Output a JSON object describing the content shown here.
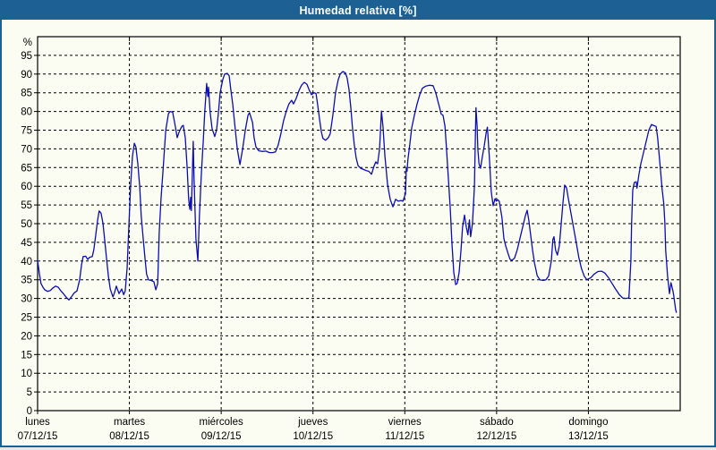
{
  "window": {
    "title": "Humedad relativa [%]"
  },
  "colors": {
    "titlebar": "#1d6094",
    "border": "#1d6094",
    "background": "#fbfdf2",
    "grid": "#000000",
    "frame": "#000000",
    "text": "#000000",
    "line": "#0c0cb8"
  },
  "chart_data": {
    "type": "line",
    "title": "Humedad relativa [%]",
    "y_axis_symbol": "%",
    "ylim": [
      0,
      100
    ],
    "y_ticks": [
      0,
      5,
      10,
      15,
      20,
      25,
      30,
      35,
      40,
      45,
      50,
      55,
      60,
      65,
      70,
      75,
      80,
      85,
      90,
      95
    ],
    "grid": "dashed",
    "x_hours_total": 168,
    "x_days": [
      {
        "name": "lunes",
        "date": "07/12/15"
      },
      {
        "name": "martes",
        "date": "08/12/15"
      },
      {
        "name": "miércoles",
        "date": "09/12/15"
      },
      {
        "name": "jueves",
        "date": "10/12/15"
      },
      {
        "name": "viernes",
        "date": "11/12/15"
      },
      {
        "name": "sábado",
        "date": "12/12/15"
      },
      {
        "name": "domingo",
        "date": "13/12/15"
      }
    ],
    "series": [
      {
        "name": "Humedad relativa",
        "color": "#0c0cb8",
        "points": [
          [
            0,
            40.2
          ],
          [
            0.5,
            36.5
          ],
          [
            0.9,
            34
          ],
          [
            1.4,
            33
          ],
          [
            1.9,
            32.3
          ],
          [
            2.6,
            31.9
          ],
          [
            3.3,
            32.1
          ],
          [
            4,
            32.8
          ],
          [
            4.7,
            33.3
          ],
          [
            5.4,
            33
          ],
          [
            6.1,
            32
          ],
          [
            6.8,
            31.2
          ],
          [
            7.5,
            30.3
          ],
          [
            8.2,
            29.6
          ],
          [
            8.9,
            30.5
          ],
          [
            9.6,
            31.5
          ],
          [
            10.3,
            32
          ],
          [
            11,
            35
          ],
          [
            11.5,
            39
          ],
          [
            11.9,
            41.2
          ],
          [
            12.6,
            41.3
          ],
          [
            13.1,
            40.4
          ],
          [
            13.6,
            41
          ],
          [
            14.3,
            41.2
          ],
          [
            14.7,
            43
          ],
          [
            15.2,
            47
          ],
          [
            15.7,
            51
          ],
          [
            16.1,
            53.4
          ],
          [
            16.6,
            52.8
          ],
          [
            17.1,
            50
          ],
          [
            17.5,
            46
          ],
          [
            18,
            41
          ],
          [
            18.5,
            36
          ],
          [
            19,
            32.5
          ],
          [
            19.7,
            30.4
          ],
          [
            20.1,
            31.5
          ],
          [
            20.6,
            33.3
          ],
          [
            21.3,
            31.3
          ],
          [
            22,
            32.5
          ],
          [
            22.5,
            31
          ],
          [
            22.9,
            32
          ],
          [
            23.4,
            38
          ],
          [
            23.9,
            50
          ],
          [
            24.3,
            60
          ],
          [
            24.8,
            68
          ],
          [
            25.3,
            71.5
          ],
          [
            25.7,
            70.5
          ],
          [
            26.2,
            66
          ],
          [
            26.7,
            60
          ],
          [
            27.1,
            52
          ],
          [
            27.6,
            46
          ],
          [
            28.1,
            40.5
          ],
          [
            28.5,
            36.5
          ],
          [
            29,
            35
          ],
          [
            29.7,
            34.8
          ],
          [
            30.4,
            34.5
          ],
          [
            30.9,
            32.3
          ],
          [
            31.4,
            34
          ],
          [
            31.8,
            47.6
          ],
          [
            32.3,
            57
          ],
          [
            32.8,
            64.4
          ],
          [
            33.5,
            75
          ],
          [
            34.2,
            79.4
          ],
          [
            34.6,
            80
          ],
          [
            35.3,
            79.8
          ],
          [
            36,
            76
          ],
          [
            36.5,
            73
          ],
          [
            37,
            74.5
          ],
          [
            37.7,
            76
          ],
          [
            38.1,
            76.3
          ],
          [
            38.6,
            73
          ],
          [
            39.1,
            65
          ],
          [
            39.5,
            56.5
          ],
          [
            39.8,
            53.8
          ],
          [
            40,
            57
          ],
          [
            40.2,
            53.5
          ],
          [
            40.7,
            72
          ],
          [
            40.9,
            62
          ],
          [
            41.4,
            46
          ],
          [
            41.9,
            40
          ],
          [
            42.3,
            52
          ],
          [
            42.8,
            63
          ],
          [
            43.3,
            72
          ],
          [
            43.7,
            80
          ],
          [
            44.2,
            87.5
          ],
          [
            44.5,
            84
          ],
          [
            44.7,
            86.5
          ],
          [
            45.1,
            80
          ],
          [
            45.6,
            75.5
          ],
          [
            46.3,
            73.3
          ],
          [
            46.8,
            75
          ],
          [
            47.3,
            80
          ],
          [
            47.7,
            85
          ],
          [
            48.4,
            88.5
          ],
          [
            48.9,
            90
          ],
          [
            49.6,
            90.2
          ],
          [
            50.1,
            89.5
          ],
          [
            50.5,
            86
          ],
          [
            51,
            82
          ],
          [
            51.5,
            77
          ],
          [
            52.2,
            70
          ],
          [
            52.9,
            65.8
          ],
          [
            53.6,
            70
          ],
          [
            54.3,
            75
          ],
          [
            55,
            79
          ],
          [
            55.4,
            79.7
          ],
          [
            56.2,
            77
          ],
          [
            56.6,
            73
          ],
          [
            57.1,
            70.5
          ],
          [
            57.8,
            69.5
          ],
          [
            58.7,
            69.3
          ],
          [
            59.7,
            69.4
          ],
          [
            60.6,
            69
          ],
          [
            61.5,
            69
          ],
          [
            62.2,
            69.2
          ],
          [
            62.9,
            71
          ],
          [
            63.6,
            74
          ],
          [
            64.3,
            77.5
          ],
          [
            65,
            80
          ],
          [
            65.7,
            82
          ],
          [
            66.4,
            83
          ],
          [
            66.9,
            82
          ],
          [
            67.6,
            83.5
          ],
          [
            68.3,
            85.5
          ],
          [
            69,
            87
          ],
          [
            69.7,
            87.8
          ],
          [
            70.4,
            87.3
          ],
          [
            71.1,
            85.5
          ],
          [
            71.6,
            84.5
          ],
          [
            72.3,
            85
          ],
          [
            72.8,
            84.8
          ],
          [
            73.2,
            82
          ],
          [
            73.7,
            78
          ],
          [
            74.2,
            74.5
          ],
          [
            74.6,
            72.8
          ],
          [
            75.3,
            72.3
          ],
          [
            76,
            73
          ],
          [
            76.5,
            74
          ],
          [
            77.2,
            79
          ],
          [
            77.9,
            85
          ],
          [
            78.6,
            88.5
          ],
          [
            79.1,
            90
          ],
          [
            79.8,
            90.7
          ],
          [
            80.5,
            90.3
          ],
          [
            80.9,
            89
          ],
          [
            81.4,
            86
          ],
          [
            81.9,
            81
          ],
          [
            82.3,
            76
          ],
          [
            82.8,
            71
          ],
          [
            83.3,
            67.5
          ],
          [
            83.8,
            65.5
          ],
          [
            84.5,
            64.8
          ],
          [
            85.2,
            64.5
          ],
          [
            85.9,
            64.2
          ],
          [
            86.6,
            64
          ],
          [
            87.3,
            63.2
          ],
          [
            88,
            65.5
          ],
          [
            88.4,
            66.5
          ],
          [
            88.9,
            66
          ],
          [
            89.4,
            70
          ],
          [
            89.9,
            80.1
          ],
          [
            90.3,
            76
          ],
          [
            90.8,
            68
          ],
          [
            91.5,
            60.3
          ],
          [
            92.2,
            56.5
          ],
          [
            92.9,
            54.5
          ],
          [
            93.6,
            56.5
          ],
          [
            94.3,
            56
          ],
          [
            95,
            56.2
          ],
          [
            95.5,
            56
          ],
          [
            96.2,
            58
          ],
          [
            96.4,
            65
          ],
          [
            96.6,
            64
          ],
          [
            96.8,
            67
          ],
          [
            97.3,
            71
          ],
          [
            97.8,
            75.6
          ],
          [
            98.5,
            79
          ],
          [
            99.2,
            82
          ],
          [
            99.9,
            84.5
          ],
          [
            100.6,
            86.2
          ],
          [
            101.5,
            86.8
          ],
          [
            102.5,
            87
          ],
          [
            103.4,
            86.9
          ],
          [
            104.1,
            85
          ],
          [
            104.6,
            83
          ],
          [
            105.1,
            81
          ],
          [
            105.5,
            79.3
          ],
          [
            106,
            79
          ],
          [
            106.5,
            76
          ],
          [
            106.9,
            70
          ],
          [
            107.4,
            62
          ],
          [
            107.9,
            54
          ],
          [
            108.3,
            45
          ],
          [
            108.8,
            37
          ],
          [
            109.3,
            33.7
          ],
          [
            109.7,
            34
          ],
          [
            110.2,
            37
          ],
          [
            110.7,
            43
          ],
          [
            111.1,
            49
          ],
          [
            111.6,
            52.3
          ],
          [
            112.1,
            49
          ],
          [
            112.5,
            47
          ],
          [
            112.9,
            51
          ],
          [
            113.2,
            46.5
          ],
          [
            113.7,
            50
          ],
          [
            114.2,
            60
          ],
          [
            114.4,
            70
          ],
          [
            114.6,
            81
          ],
          [
            114.9,
            76
          ],
          [
            115.1,
            70
          ],
          [
            115.4,
            66
          ],
          [
            115.8,
            64.8
          ],
          [
            116.3,
            68
          ],
          [
            116.8,
            71
          ],
          [
            117.3,
            74.5
          ],
          [
            117.6,
            75.8
          ],
          [
            118.1,
            68
          ],
          [
            118.6,
            58.5
          ],
          [
            119.1,
            54.8
          ],
          [
            119.6,
            56.7
          ],
          [
            119.9,
            56
          ],
          [
            120.3,
            56.4
          ],
          [
            120.7,
            56
          ],
          [
            121.4,
            51.7
          ],
          [
            121.9,
            46
          ],
          [
            122.4,
            44
          ],
          [
            123,
            42
          ],
          [
            123.5,
            40.5
          ],
          [
            124,
            40.2
          ],
          [
            124.7,
            40.8
          ],
          [
            125.4,
            43
          ],
          [
            126.1,
            46
          ],
          [
            126.8,
            49
          ],
          [
            127.5,
            52
          ],
          [
            128,
            53.6
          ],
          [
            128.4,
            51
          ],
          [
            128.9,
            47
          ],
          [
            129.4,
            43
          ],
          [
            129.9,
            39.5
          ],
          [
            130.6,
            36.1
          ],
          [
            131.3,
            35
          ],
          [
            132.2,
            34.8
          ],
          [
            132.9,
            35
          ],
          [
            133.6,
            36
          ],
          [
            134.3,
            40
          ],
          [
            134.7,
            45.7
          ],
          [
            135,
            46.5
          ],
          [
            135.4,
            43
          ],
          [
            135.9,
            41.6
          ],
          [
            136.4,
            44
          ],
          [
            136.8,
            49
          ],
          [
            137.3,
            55
          ],
          [
            137.8,
            60.3
          ],
          [
            138.3,
            59.5
          ],
          [
            138.7,
            57
          ],
          [
            139.4,
            53
          ],
          [
            140.1,
            49
          ],
          [
            140.8,
            45
          ],
          [
            141.5,
            41
          ],
          [
            142.2,
            38
          ],
          [
            142.9,
            36
          ],
          [
            143.6,
            35
          ],
          [
            144.6,
            35.5
          ],
          [
            145.5,
            36.5
          ],
          [
            146.5,
            37.2
          ],
          [
            147.4,
            37.3
          ],
          [
            148.3,
            36.8
          ],
          [
            149.3,
            35.5
          ],
          [
            150.2,
            34
          ],
          [
            151.1,
            32.5
          ],
          [
            152.1,
            31
          ],
          [
            153,
            30.1
          ],
          [
            153.9,
            30
          ],
          [
            154.6,
            30.2
          ],
          [
            155.1,
            40
          ],
          [
            155.3,
            50
          ],
          [
            155.6,
            59
          ],
          [
            156,
            61
          ],
          [
            156.5,
            61.2
          ],
          [
            156.7,
            59.5
          ],
          [
            157.2,
            63
          ],
          [
            157.7,
            66
          ],
          [
            158.4,
            69
          ],
          [
            159.1,
            72
          ],
          [
            159.8,
            75
          ],
          [
            160.5,
            76.5
          ],
          [
            161.2,
            76.2
          ],
          [
            161.7,
            76
          ],
          [
            162.1,
            73
          ],
          [
            162.8,
            64.8
          ],
          [
            163.3,
            59
          ],
          [
            163.7,
            55.5
          ],
          [
            164,
            50
          ],
          [
            164.2,
            42.8
          ],
          [
            164.7,
            36
          ],
          [
            165.2,
            31.3
          ],
          [
            165.6,
            34.2
          ],
          [
            166.1,
            32
          ],
          [
            166.3,
            30.9
          ],
          [
            166.8,
            27
          ],
          [
            167,
            26.3
          ]
        ]
      }
    ]
  }
}
